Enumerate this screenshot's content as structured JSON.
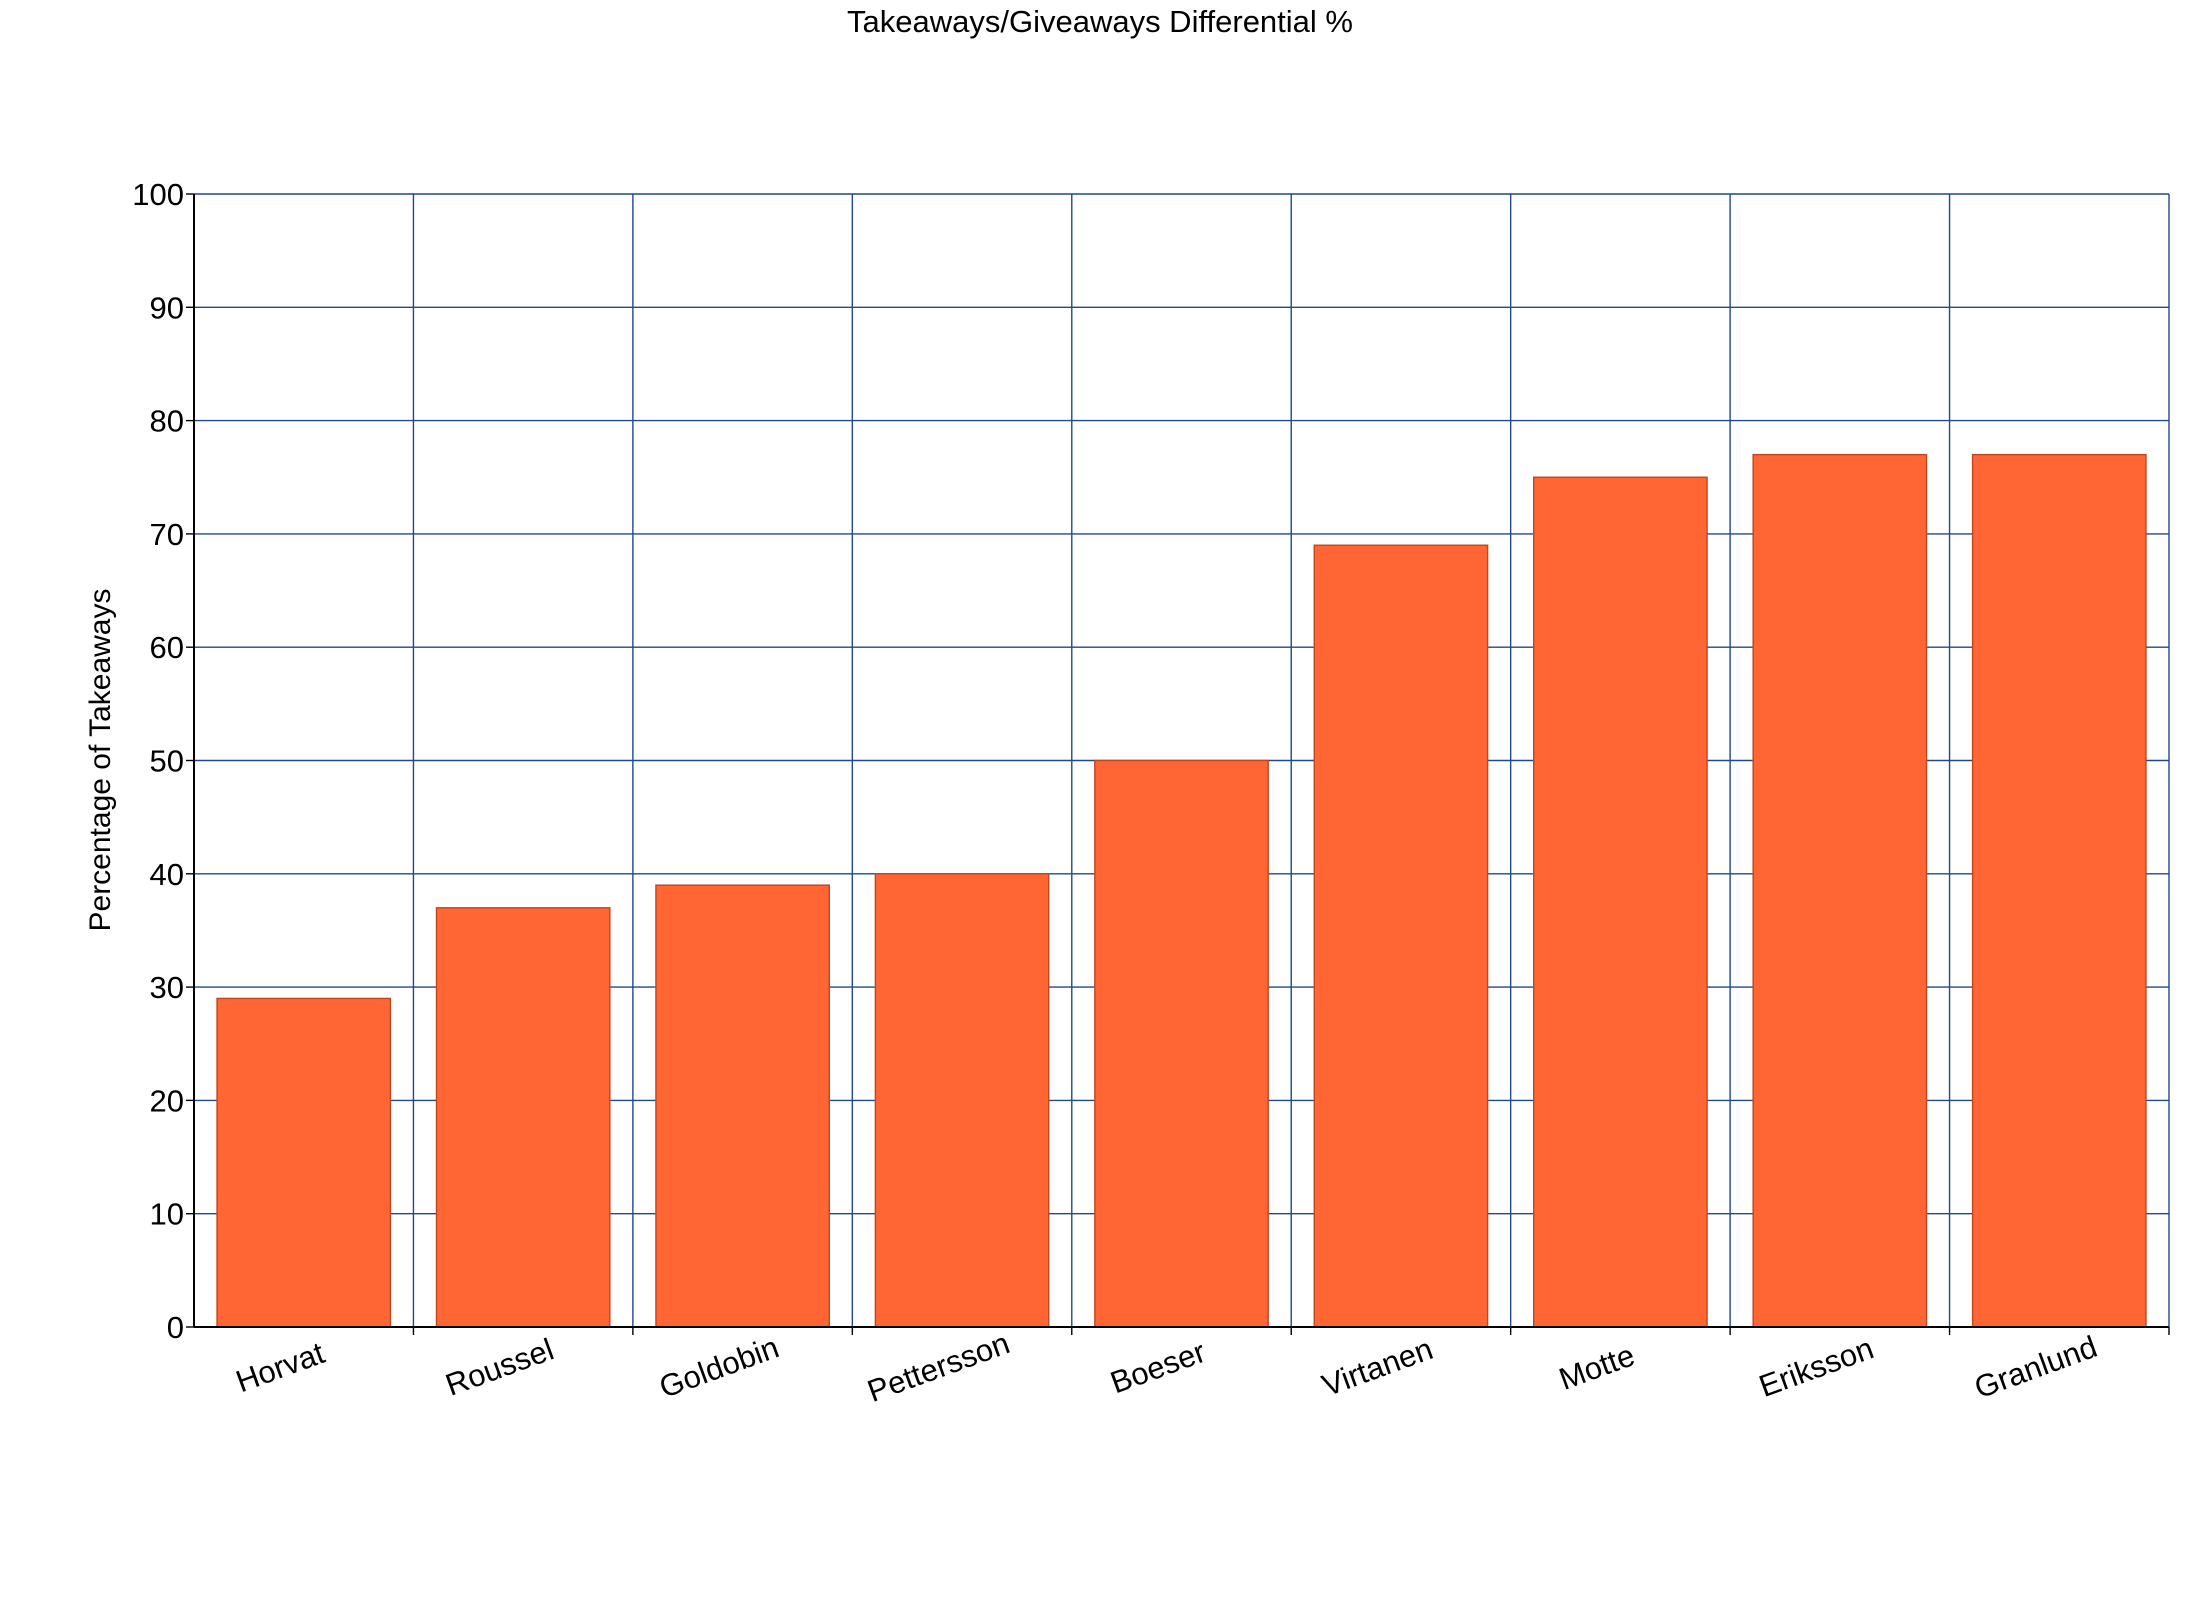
{
  "chart_data": {
    "type": "bar",
    "title": "Takeaways/Giveaways Differential %",
    "xlabel": "",
    "ylabel": "Percentage of Takeaways",
    "categories": [
      "Horvat",
      "Roussel",
      "Goldobin",
      "Pettersson",
      "Boeser",
      "Virtanen",
      "Motte",
      "Eriksson",
      "Granlund"
    ],
    "values": [
      29,
      37,
      39,
      40,
      50,
      69,
      75,
      77,
      77
    ],
    "ylim": [
      0,
      100
    ],
    "yticks": [
      0,
      10,
      20,
      30,
      40,
      50,
      60,
      70,
      80,
      90,
      100
    ],
    "grid": true,
    "legend": "none",
    "colors": {
      "bar": "#FF6633",
      "bar_edge": "#C0461E",
      "grid": "#1F4A87",
      "axis": "#000000"
    }
  }
}
